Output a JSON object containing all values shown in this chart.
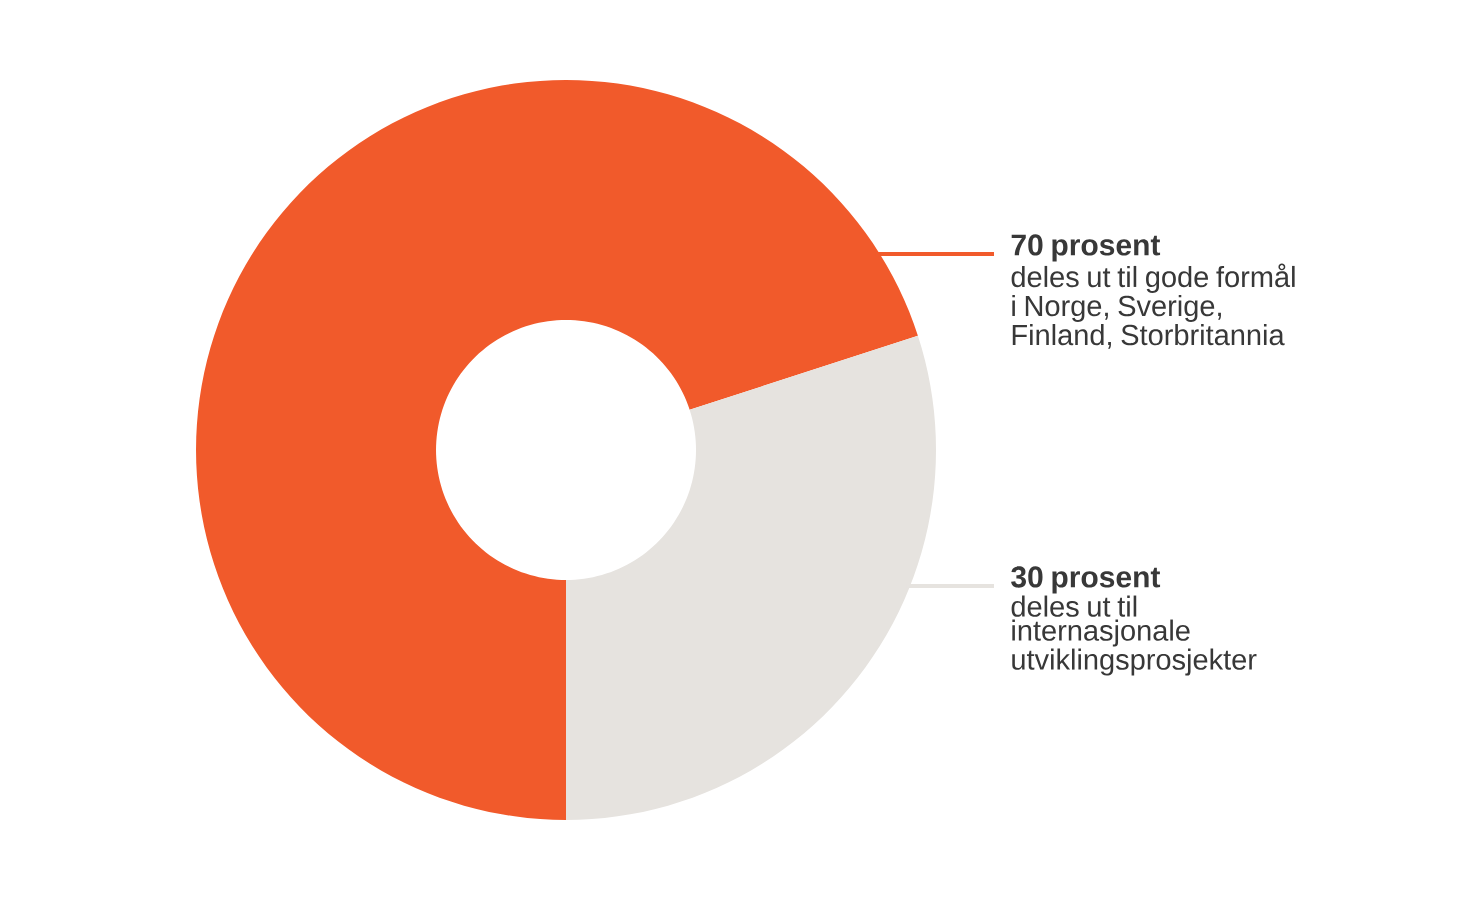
{
  "chart_data": {
    "type": "donut",
    "categories": [
      "deles ut til gode formål i Norge, Sverige, Finland, Storbritannia",
      "deles ut til internasjonale utviklingsprosjekter"
    ],
    "values": [
      70,
      30
    ],
    "colors": [
      "#f15a2b",
      "#e6e3df"
    ],
    "value_labels": [
      "70 prosent",
      "30 prosent"
    ]
  }
}
